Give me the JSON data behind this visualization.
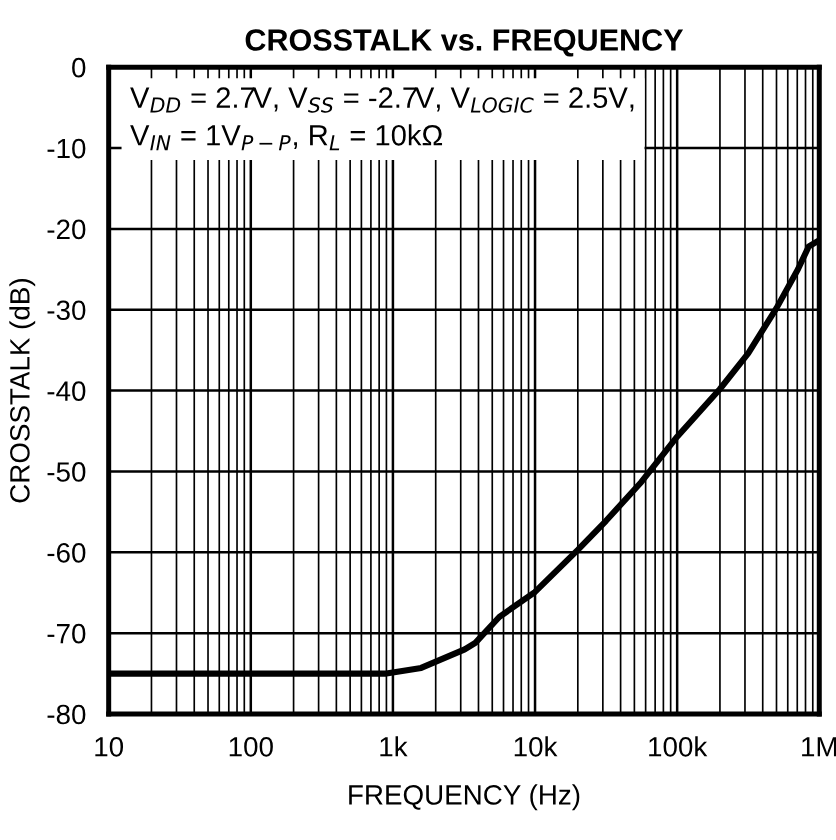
{
  "chart_data": {
    "type": "line",
    "title": "CROSSTALK vs. FREQUENCY",
    "xlabel": "FREQUENCY (Hz)",
    "ylabel": "CROSSTALK (dB)",
    "annotations": [
      "V$_{DD}$ = 2.7V, V$_{SS}$ = -2.7V, V$_{LOGIC}$ = 2.5V,\nV$_{IN}$ = 1V$_{P−P}$, R$_{L}$ = 10kΩ"
    ],
    "log": "x",
    "grid": true,
    "marker": "none",
    "line_style": "solid",
    "xlim": [
      10,
      1000000
    ],
    "xticks": [
      10,
      100,
      {
        "value": 1000,
        "label": "1k"
      },
      {
        "value": 10000,
        "label": "10k"
      },
      {
        "value": 100000,
        "label": "100k"
      },
      {
        "value": 1000000,
        "label": "1M"
      }
    ],
    "ylim": [
      -80,
      0
    ],
    "yticks": [
      -80,
      -70,
      -60,
      -50,
      -40,
      -30,
      -20,
      -10,
      0
    ],
    "series": [
      {
        "color": "#000000",
        "x": [
          10,
          100,
          900,
          1580,
          3200,
          3800,
          5600,
          10000,
          20000,
          31600,
          56000,
          100000,
          200000,
          316000,
          500000,
          708000,
          841000,
          1000000
        ],
        "values": [
          -75,
          -75,
          -75,
          -74.3,
          -72,
          -71.2,
          -68,
          -64.9,
          -59.7,
          -56.1,
          -51.3,
          -45.7,
          -39.8,
          -35.4,
          -29.8,
          -25,
          -22.2,
          -21.4
        ]
      }
    ]
  }
}
